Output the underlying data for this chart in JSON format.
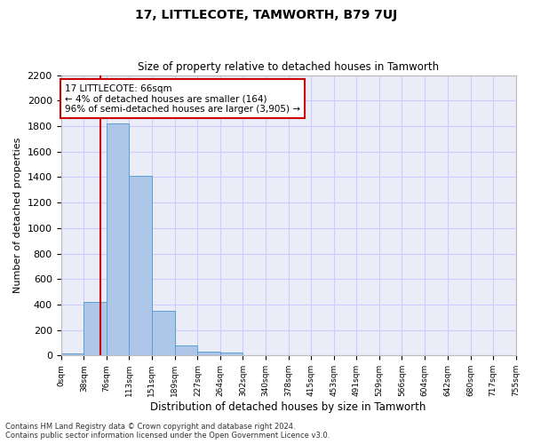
{
  "title": "17, LITTLECOTE, TAMWORTH, B79 7UJ",
  "subtitle": "Size of property relative to detached houses in Tamworth",
  "xlabel": "Distribution of detached houses by size in Tamworth",
  "ylabel": "Number of detached properties",
  "footnote1": "Contains HM Land Registry data © Crown copyright and database right 2024.",
  "footnote2": "Contains public sector information licensed under the Open Government Licence v3.0.",
  "bar_edges": [
    0,
    38,
    76,
    113,
    151,
    189,
    227,
    264,
    302,
    340,
    378,
    415,
    453,
    491,
    529,
    566,
    604,
    642,
    680,
    717,
    755
  ],
  "bar_heights": [
    15,
    420,
    1820,
    1410,
    350,
    80,
    30,
    20,
    0,
    0,
    0,
    0,
    0,
    0,
    0,
    0,
    0,
    0,
    0,
    0
  ],
  "bar_color": "#aec6e8",
  "bar_edge_color": "#5a9fd4",
  "grid_color": "#ccccff",
  "bg_color": "#eaecf8",
  "property_line_x": 66,
  "property_line_color": "#cc0000",
  "annotation_line1": "17 LITTLECOTE: 66sqm",
  "annotation_line2": "← 4% of detached houses are smaller (164)",
  "annotation_line3": "96% of semi-detached houses are larger (3,905) →",
  "annotation_box_color": "#cc0000",
  "ylim": [
    0,
    2200
  ],
  "yticks": [
    0,
    200,
    400,
    600,
    800,
    1000,
    1200,
    1400,
    1600,
    1800,
    2000,
    2200
  ],
  "tick_labels": [
    "0sqm",
    "38sqm",
    "76sqm",
    "113sqm",
    "151sqm",
    "189sqm",
    "227sqm",
    "264sqm",
    "302sqm",
    "340sqm",
    "378sqm",
    "415sqm",
    "453sqm",
    "491sqm",
    "529sqm",
    "566sqm",
    "604sqm",
    "642sqm",
    "680sqm",
    "717sqm",
    "755sqm"
  ]
}
